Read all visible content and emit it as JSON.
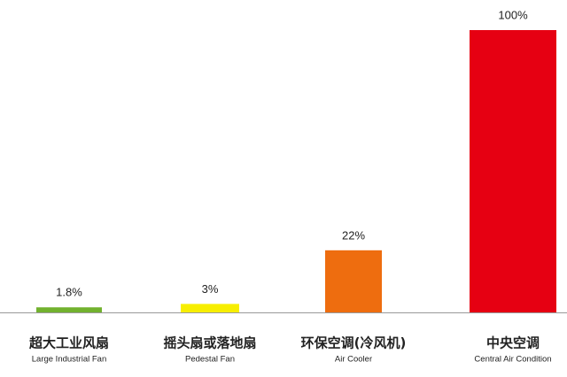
{
  "chart_data": {
    "type": "bar",
    "categories": [
      "超大工业风扇",
      "摇头扇或落地扇",
      "环保空调(冷风机)",
      "中央空调"
    ],
    "categories_en": [
      "Large Industrial Fan",
      "Pedestal Fan",
      "Air Cooler",
      "Central Air Condition"
    ],
    "values": [
      1.8,
      3,
      22,
      100
    ],
    "value_labels": [
      "1.8%",
      "3%",
      "22%",
      "100%"
    ],
    "colors": [
      "#72b12e",
      "#f7ee00",
      "#ee6d0f",
      "#e60012"
    ]
  }
}
